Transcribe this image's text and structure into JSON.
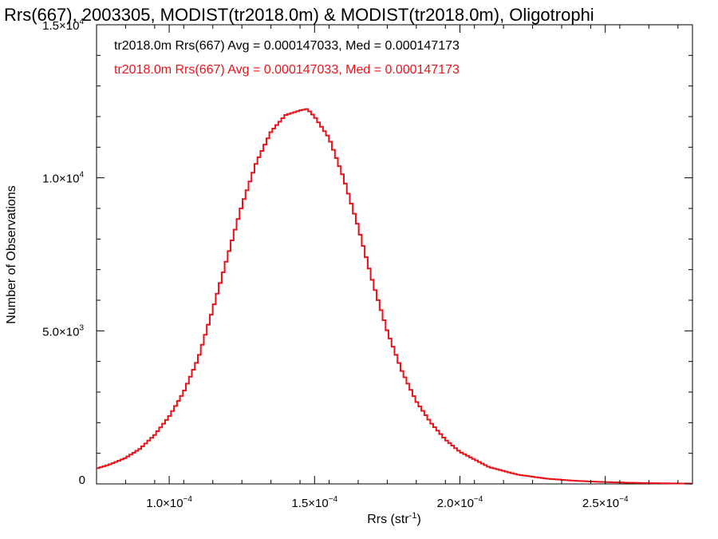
{
  "chart_data": {
    "type": "line",
    "step": true,
    "title": "Rrs(667), 2003305, MODIST(tr2018.0m) & MODIST(tr2018.0m), Oligotrophi",
    "xlabel": "Rrs (str⁻¹)",
    "ylabel": "Number of Observations",
    "xlim": [
      7.5e-05,
      0.00028
    ],
    "ylim": [
      0,
      15000
    ],
    "xticks": [
      0.0001,
      0.00015,
      0.0002,
      0.00025
    ],
    "xtick_labels": [
      {
        "mant": "1.0×10",
        "exp": "−4"
      },
      {
        "mant": "1.5×10",
        "exp": "−4"
      },
      {
        "mant": "2.0×10",
        "exp": "−4"
      },
      {
        "mant": "2.5×10",
        "exp": "−4"
      }
    ],
    "yticks": [
      0,
      5000,
      10000,
      15000
    ],
    "ytick_labels": [
      {
        "mant": "0",
        "exp": ""
      },
      {
        "mant": "5.0×10",
        "exp": "3"
      },
      {
        "mant": "1.0×10",
        "exp": "4"
      },
      {
        "mant": "1.5×10",
        "exp": "4"
      }
    ],
    "grid": false,
    "legend_position": "top-left",
    "series": [
      {
        "name": "tr2018.0m Rrs(667) Avg = 0.000147033, Med = 0.000147173",
        "color": "#000000",
        "x": [
          7.5e-05,
          8e-05,
          8.5e-05,
          9e-05,
          9.5e-05,
          0.0001,
          0.000105,
          0.00011,
          0.000115,
          0.00012,
          0.000125,
          0.00013,
          0.000135,
          0.00014,
          0.000145,
          0.0001475,
          0.00015,
          0.000155,
          0.00016,
          0.000165,
          0.00017,
          0.000175,
          0.00018,
          0.000185,
          0.00019,
          0.000195,
          0.0002,
          0.00021,
          0.00022,
          0.00023,
          0.00024,
          0.00025,
          0.00026,
          0.00027,
          0.00028
        ],
        "values": [
          500,
          650,
          850,
          1150,
          1600,
          2200,
          3000,
          4100,
          5700,
          7400,
          9100,
          10500,
          11500,
          12050,
          12200,
          12250,
          12000,
          11300,
          10000,
          8400,
          6600,
          5000,
          3700,
          2700,
          2000,
          1450,
          1050,
          550,
          300,
          170,
          100,
          60,
          35,
          20,
          10
        ]
      },
      {
        "name": "tr2018.0m Rrs(667) Avg = 0.000147033, Med = 0.000147173",
        "color": "#e8141a",
        "x": [
          7.5e-05,
          8e-05,
          8.5e-05,
          9e-05,
          9.5e-05,
          0.0001,
          0.000105,
          0.00011,
          0.000115,
          0.00012,
          0.000125,
          0.00013,
          0.000135,
          0.00014,
          0.000145,
          0.0001475,
          0.00015,
          0.000155,
          0.00016,
          0.000165,
          0.00017,
          0.000175,
          0.00018,
          0.000185,
          0.00019,
          0.000195,
          0.0002,
          0.00021,
          0.00022,
          0.00023,
          0.00024,
          0.00025,
          0.00026,
          0.00027,
          0.00028
        ],
        "values": [
          500,
          650,
          850,
          1150,
          1600,
          2200,
          3000,
          4100,
          5700,
          7400,
          9100,
          10500,
          11500,
          12050,
          12200,
          12250,
          12000,
          11300,
          10000,
          8400,
          6600,
          5000,
          3700,
          2700,
          2000,
          1450,
          1050,
          550,
          300,
          170,
          100,
          60,
          35,
          20,
          10
        ]
      }
    ]
  }
}
